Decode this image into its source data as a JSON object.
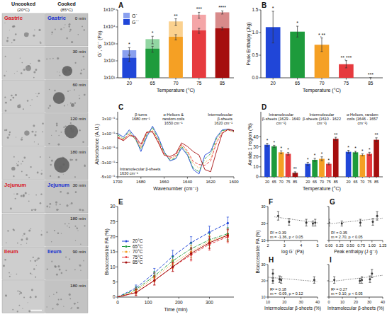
{
  "micrographs": {
    "columns": [
      "Uncooked",
      "Cooked"
    ],
    "temperatures": [
      "(20°C)",
      "(85°C)"
    ],
    "sections": [
      {
        "name": "Gastric",
        "times": [
          "0 min",
          "30 min",
          "60 min",
          "120 min",
          "180 min"
        ]
      },
      {
        "name": "Jejunum",
        "times": [
          "30 min",
          "180 min"
        ]
      },
      {
        "name": "Ileum",
        "times": [
          "90 min",
          "180 min"
        ]
      }
    ]
  },
  "chart_data": [
    {
      "type": "bar",
      "panel_label": "A",
      "x_label": "Temperature (°C)",
      "y_label": "G`, G`` (Pa)",
      "categories": [
        "20",
        "65",
        "70",
        "75",
        "85"
      ],
      "log": "y",
      "ylim": [
        10,
        100000
      ],
      "yticks": [
        {
          "value": 10,
          "label": "1x10¹"
        },
        {
          "value": 100,
          "label": "1x10²"
        },
        {
          "value": 1000,
          "label": "1x10³"
        },
        {
          "value": 10000,
          "label": "1x10⁴"
        },
        {
          "value": 100000,
          "label": "1x10⁵"
        }
      ],
      "legend": "top-left",
      "series": [
        {
          "name": "G`",
          "colors": [
            "#8aa0ef",
            "#92d6a2",
            "#fbd18f",
            "#f4a5a7",
            "#d88a8a"
          ],
          "values": [
            420,
            1900,
            21000,
            52000,
            72000
          ],
          "errors": [
            180,
            900,
            9000,
            20000,
            15000
          ]
        },
        {
          "name": "G``",
          "colors": [
            "#2046d8",
            "#1e9b3c",
            "#f5a024",
            "#e63a3e",
            "#a50e0e"
          ],
          "values": [
            150,
            520,
            2600,
            6200,
            8200
          ],
          "errors": [
            60,
            200,
            900,
            2000,
            1500
          ]
        }
      ],
      "annotations": [
        "*",
        "*",
        "**",
        "***",
        "****"
      ]
    },
    {
      "type": "bar",
      "panel_label": "B",
      "x_label": "Temperature (°C)",
      "y_label": "Peak Enthalpy (J/g)",
      "categories": [
        "20",
        "65",
        "70",
        "75",
        "85"
      ],
      "colors": [
        "#2046d8",
        "#1e9b3c",
        "#f5a024",
        "#e63a3e",
        "#a50e0e"
      ],
      "values": [
        1.12,
        1.02,
        0.73,
        0.3,
        0
      ],
      "errors": [
        0.35,
        0.12,
        0.15,
        0.08,
        0
      ],
      "ylim": [
        0,
        1.5
      ],
      "yticks": [
        {
          "value": 0,
          "label": "0.0"
        },
        0.5,
        {
          "value": 1,
          "label": "1.0"
        },
        1.5
      ],
      "annotations": [
        "*",
        "*",
        "*,**",
        "**,***",
        "***"
      ]
    },
    {
      "type": "line",
      "panel_label": "C",
      "x_label": "Wavenumber (cm⁻¹)",
      "y_label": "Absorbance (A.U.)",
      "x": [
        1700,
        1695,
        1690,
        1685,
        1680,
        1675,
        1670,
        1665,
        1660,
        1655,
        1650,
        1645,
        1640,
        1635,
        1630,
        1625,
        1620,
        1615,
        1610,
        1605,
        1600
      ],
      "xlim": [
        1700,
        1600
      ],
      "xticks": [
        1700,
        1680,
        1660,
        1640,
        1620,
        1600
      ],
      "ylim": [
        -5e-05,
        4e-05
      ],
      "yticks": [
        {
          "value": -5e-05,
          "label": "-5x10⁻⁵"
        },
        {
          "value": -3e-05,
          "label": "-3x10⁻⁵"
        },
        {
          "value": -1e-05,
          "label": "-1x10⁻⁵"
        },
        {
          "value": 1e-05,
          "label": "1x10⁻⁵"
        },
        {
          "value": 3e-05,
          "label": "3x10⁻⁵"
        }
      ],
      "series": [
        {
          "color": "#2046d8",
          "line_style": "solid",
          "values": [
            1e-05,
            5e-06,
            1.5e-05,
            5e-06,
            -1.5e-05,
            5e-06,
            2e-05,
            5e-06,
            -1.5e-05,
            -2.8e-05,
            -2.5e-05,
            -1e-05,
            -2e-05,
            -4e-05,
            -4.6e-05,
            -2e-05,
            -1.5e-05,
            5e-06,
            1.5e-05,
            1.6e-05,
            1.4e-05
          ]
        },
        {
          "color": "#1e9b3c",
          "line_style": "dash-dot",
          "values": [
            8e-06,
            3e-06,
            1.3e-05,
            2e-06,
            -1.2e-05,
            8e-06,
            1.8e-05,
            2e-06,
            -1.6e-05,
            -2.7e-05,
            -2.4e-05,
            -8e-06,
            -1.8e-05,
            -3.8e-05,
            -4.3e-05,
            -2.5e-05,
            -1.8e-05,
            3e-06,
            1.4e-05,
            1.5e-05,
            1.3e-05
          ]
        },
        {
          "color": "#f5a024",
          "line_style": "dotted",
          "values": [
            6e-06,
            2e-06,
            1e-05,
            3e-06,
            -1e-05,
            1e-05,
            1.5e-05,
            0,
            -1.8e-05,
            -2.5e-05,
            -2.2e-05,
            -6e-06,
            -1.6e-05,
            -3.2e-05,
            -3.8e-05,
            -3e-05,
            -2.5e-05,
            0,
            1.2e-05,
            1.5e-05,
            1.2e-05
          ]
        },
        {
          "color": "#e63a3e",
          "line_style": "dashed",
          "values": [
            5e-06,
            1e-06,
            9e-06,
            4e-06,
            -8e-06,
            1.1e-05,
            1.3e-05,
            -1e-06,
            -1.9e-05,
            -2.4e-05,
            -2e-05,
            -5e-06,
            -1.4e-05,
            -2.9e-05,
            -3.3e-05,
            -3.4e-05,
            -2.8e-05,
            -3e-06,
            1.1e-05,
            1.5e-05,
            1.2e-05
          ]
        },
        {
          "color": "#a50e0e",
          "line_style": "solid",
          "values": [
            4e-06,
            0,
            7e-06,
            6e-06,
            -5e-06,
            1.2e-05,
            1.2e-05,
            -3e-06,
            -2e-05,
            -2.2e-05,
            -1.8e-05,
            -3e-06,
            -8e-06,
            -1.5e-05,
            -2e-05,
            -4e-05,
            -4.3e-05,
            -1.5e-05,
            1e-05,
            1.6e-05,
            1.4e-05
          ]
        }
      ],
      "annotations": [
        {
          "label": "β-turns",
          "value": "1680 cm⁻¹"
        },
        {
          "label": "α-Helices & random coils",
          "value": "1650 cm⁻¹"
        },
        {
          "label": "Intermolecular β-sheets",
          "value": "1620 cm⁻¹"
        },
        {
          "label": "Intramolecular β-sheets",
          "value": "1630 cm⁻¹"
        }
      ]
    },
    {
      "type": "grouped_bar",
      "panel_label": "D",
      "x_label": "Temperature (°C)",
      "y_label": "Amide 1 region (%)",
      "categories": [
        "Intramolecular β-sheets (1629 - 1640 cm⁻¹)",
        "Intermolecular β-sheets (1610 - 1622 cm⁻¹)",
        "α-Helices, random coils (1646 - 1657 cm⁻¹)"
      ],
      "ylim": [
        0,
        65
      ],
      "yticks": [
        0,
        10,
        20,
        30,
        40
      ],
      "series": [
        {
          "name": "20",
          "color": "#2046d8",
          "values": [
            32,
            13,
            25
          ],
          "errors": [
            1.5,
            1.5,
            1.5
          ],
          "annotations": [
            "*",
            "*",
            "*"
          ]
        },
        {
          "name": "65",
          "color": "#1e9b3c",
          "values": [
            30.5,
            17,
            24.5
          ],
          "errors": [
            1,
            1.5,
            1
          ],
          "annotations": [
            "*",
            "*",
            "*"
          ]
        },
        {
          "name": "70",
          "color": "#f5a024",
          "values": [
            24.5,
            18,
            22
          ],
          "errors": [
            1.5,
            2,
            1
          ],
          "annotations": [
            "*",
            "*",
            "*"
          ]
        },
        {
          "name": "75",
          "color": "#e63a3e",
          "values": [
            23,
            13,
            23
          ],
          "errors": [
            1.2,
            1,
            1.5
          ],
          "annotations": [
            "*",
            "*",
            "*"
          ]
        },
        {
          "name": "85",
          "color": "#a50e0e",
          "values": [
            4,
            38,
            37
          ],
          "errors": [
            1,
            1.5,
            2
          ],
          "annotations": [
            "**",
            "**",
            "**"
          ]
        }
      ]
    },
    {
      "type": "line",
      "panel_label": "E",
      "x_label": "Time (min)",
      "y_label": "Bioaccessible FA (%)",
      "x": [
        0,
        60,
        120,
        180,
        240,
        300,
        360
      ],
      "xlim": [
        0,
        380
      ],
      "xticks": [
        0,
        100,
        200,
        300
      ],
      "ylim": [
        0,
        30
      ],
      "yticks": [
        0,
        5,
        10,
        15,
        20,
        25,
        30
      ],
      "legend": "left",
      "series": [
        {
          "name": "20°C",
          "color": "#2046d8",
          "line_style": "dashed",
          "marker": "circle",
          "values": [
            0,
            3,
            8,
            13.5,
            18,
            21.5,
            24.5
          ],
          "errors": [
            0,
            1,
            1.5,
            2,
            2,
            2,
            2
          ]
        },
        {
          "name": "65°C",
          "color": "#1e9b3c",
          "line_style": "dash-dot",
          "marker": "circle",
          "values": [
            0,
            2.5,
            7,
            12,
            16,
            19,
            21
          ],
          "errors": [
            0,
            1,
            1.5,
            1.5,
            2,
            2,
            2
          ]
        },
        {
          "name": "70°C",
          "color": "#f5a024",
          "line_style": "dotted",
          "marker": "circle",
          "values": [
            0,
            2,
            6.5,
            11,
            15,
            18.5,
            20.5
          ],
          "errors": [
            0,
            1,
            1.5,
            1.5,
            2,
            2,
            2
          ]
        },
        {
          "name": "75°C",
          "color": "#e63a3e",
          "line_style": "dashed",
          "marker": "circle",
          "values": [
            0,
            1.5,
            5.5,
            10,
            14,
            17.5,
            20
          ],
          "errors": [
            0,
            1,
            1.5,
            1.5,
            2,
            2,
            2
          ]
        },
        {
          "name": "85°C",
          "color": "#a50e0e",
          "line_style": "solid",
          "marker": "circle",
          "values": [
            0,
            1.5,
            5.5,
            10,
            14.5,
            18,
            20.5
          ],
          "errors": [
            0,
            1,
            1.5,
            1.5,
            2,
            2,
            2
          ]
        }
      ]
    },
    {
      "type": "scatter",
      "panel_label": "F",
      "x_label": "log G` (Pa)",
      "y_label": "Bioaccessible FA (%)",
      "xlim": [
        2,
        5
      ],
      "xticks": [
        2,
        3,
        4,
        5
      ],
      "ylim": [
        10,
        30
      ],
      "yticks": [
        10,
        20,
        30
      ],
      "series": [
        {
          "type": "scatter",
          "marker": "circle",
          "color": "#333333",
          "x": [
            2.62,
            3.28,
            4.32,
            4.72,
            4.86
          ],
          "values": [
            24.5,
            21,
            20.5,
            20,
            20.5
          ],
          "errors": [
            2.5,
            2,
            2,
            1.5,
            2
          ]
        },
        {
          "type": "line",
          "line_style": "dotted",
          "color": "#444444",
          "x": [
            2.4,
            5
          ],
          "values": [
            23.9,
            20.4
          ]
        }
      ],
      "annotations": [
        "R² = 0.39",
        "m = -1.36, p < 0.05"
      ]
    },
    {
      "type": "scatter",
      "panel_label": "G",
      "x_label": "Peak enthalpy (J g⁻¹)",
      "tick_labels": "x",
      "xlim": [
        0,
        1.25
      ],
      "xticks": [
        {
          "value": 0,
          "label": "0.00"
        },
        0.25,
        {
          "value": 0.5,
          "label": "0.50"
        },
        0.75,
        {
          "value": 1,
          "label": "1.00"
        },
        1.25
      ],
      "ylim": [
        10,
        30
      ],
      "yticks": [
        10,
        20,
        30
      ],
      "series": [
        {
          "type": "scatter",
          "marker": "circle",
          "color": "#333333",
          "x": [
            1.12,
            1.02,
            0.73,
            0.3,
            0
          ],
          "values": [
            24.5,
            21,
            20.5,
            20,
            20.5
          ],
          "errors": [
            2.5,
            2,
            2,
            1.5,
            2
          ]
        },
        {
          "type": "line",
          "line_style": "dotted",
          "color": "#444444",
          "x": [
            0,
            1.25
          ],
          "values": [
            19.8,
            23.2
          ]
        }
      ],
      "annotations": [
        "R² = 0.35",
        "m = 2.70, p < 0.05"
      ]
    },
    {
      "type": "scatter",
      "panel_label": "H",
      "x_label": "Intermolecular β-sheets (%)",
      "xlim": [
        10,
        40
      ],
      "xticks": [
        10,
        20,
        30,
        40
      ],
      "ylim": [
        10,
        30
      ],
      "yticks": [
        10,
        20,
        30
      ],
      "series": [
        {
          "type": "scatter",
          "marker": "circle",
          "color": "#333333",
          "x": [
            13,
            17,
            18,
            13,
            38
          ],
          "values": [
            24.5,
            21,
            20.5,
            20,
            20.5
          ],
          "errors": [
            2.5,
            2,
            2,
            1.5,
            2
          ]
        },
        {
          "type": "line",
          "line_style": "dotted",
          "color": "#444444",
          "x": [
            10,
            40
          ],
          "values": [
            22.2,
            19.5
          ]
        }
      ],
      "annotations": [
        "R² = 0.18",
        "m = -0.09, p = 0.12"
      ]
    },
    {
      "type": "scatter",
      "panel_label": "I",
      "x_label": "Intramolecular β-sheets (%)",
      "tick_labels": "x",
      "xlim": [
        0,
        40
      ],
      "xticks": [
        0,
        10,
        20,
        30,
        40
      ],
      "ylim": [
        10,
        30
      ],
      "yticks": [
        10,
        20,
        30
      ],
      "series": [
        {
          "type": "scatter",
          "marker": "circle",
          "color": "#333333",
          "x": [
            32,
            30.5,
            24.5,
            23,
            4
          ],
          "values": [
            24.5,
            21,
            20.5,
            20,
            20.5
          ],
          "errors": [
            2.5,
            2,
            2,
            1.5,
            2
          ]
        },
        {
          "type": "line",
          "line_style": "dotted",
          "color": "#444444",
          "x": [
            0,
            40
          ],
          "values": [
            19.4,
            23.4
          ]
        }
      ],
      "annotations": [
        "R² = 0.27",
        "m = 0.10, p < 0.05"
      ]
    }
  ]
}
